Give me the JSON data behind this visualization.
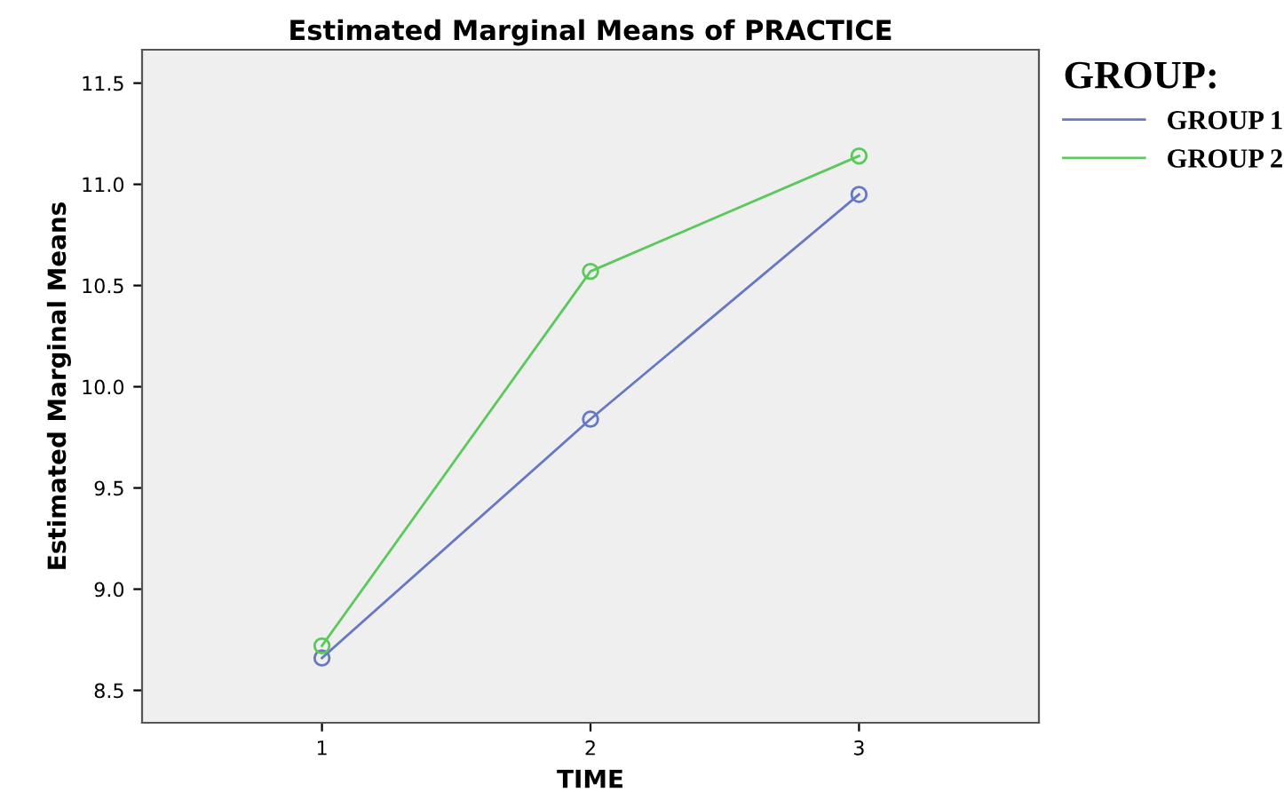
{
  "chart_data": {
    "type": "line",
    "title": "Estimated Marginal Means of PRACTICE",
    "xlabel": "TIME",
    "ylabel": "Estimated Marginal Means",
    "legend_title": "GROUP:",
    "x": [
      1,
      2,
      3
    ],
    "series": [
      {
        "name": "GROUP 1",
        "color": "#6677c4",
        "values": [
          8.66,
          9.84,
          10.95
        ]
      },
      {
        "name": "GROUP 2",
        "color": "#5cc85c",
        "values": [
          8.72,
          10.57,
          11.14
        ]
      }
    ],
    "xlim": [
      0.33,
      3.67
    ],
    "xticks": [
      1,
      2,
      3
    ],
    "ylim": [
      8.34,
      11.665
    ],
    "yticks": [
      {
        "value": 8.5,
        "label": "8.5"
      },
      {
        "value": 9.0,
        "label": "9.0"
      },
      {
        "value": 9.5,
        "label": "9.5"
      },
      {
        "value": 10.0,
        "label": "10.0"
      },
      {
        "value": 10.5,
        "label": "10.5"
      },
      {
        "value": 11.0,
        "label": "11.0"
      },
      {
        "value": 11.5,
        "label": "11.5"
      }
    ],
    "grid": false,
    "legend": "top right",
    "marker": "circle",
    "line_style": "solid"
  }
}
